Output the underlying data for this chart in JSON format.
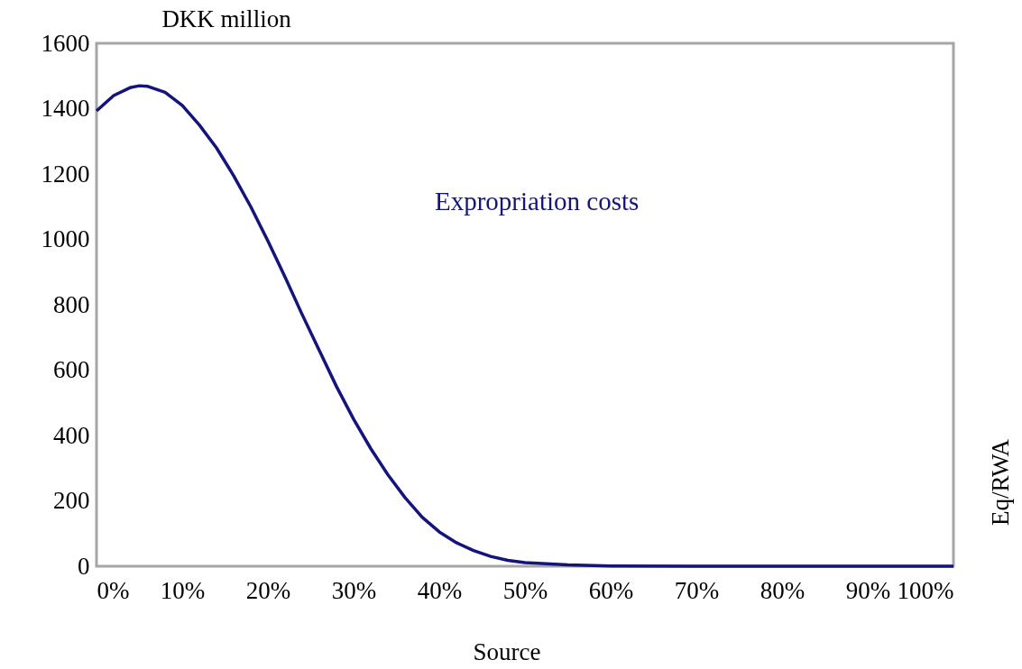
{
  "chart_data": {
    "type": "line",
    "ylabel": "DKK million",
    "y2label": "Eq/RWA",
    "annotations": [
      "Source"
    ],
    "x": [
      0,
      2,
      4,
      5,
      6,
      8,
      10,
      12,
      14,
      16,
      18,
      20,
      22,
      24,
      26,
      28,
      30,
      32,
      34,
      36,
      38,
      40,
      42,
      44,
      46,
      48,
      50,
      55,
      60,
      70,
      80,
      90,
      100
    ],
    "series": [
      {
        "name": "Expropriation costs",
        "color": "#14147d",
        "values": [
          1393,
          1440,
          1465,
          1470,
          1468,
          1450,
          1410,
          1350,
          1280,
          1195,
          1100,
          995,
          885,
          770,
          660,
          550,
          450,
          360,
          280,
          210,
          150,
          105,
          72,
          48,
          30,
          18,
          11,
          4,
          1,
          0,
          0,
          0,
          0
        ]
      }
    ],
    "xlim": [
      0,
      100
    ],
    "xticks": [
      {
        "value": 0,
        "label": "0%"
      },
      {
        "value": 10,
        "label": "10%"
      },
      {
        "value": 20,
        "label": "20%"
      },
      {
        "value": 30,
        "label": "30%"
      },
      {
        "value": 40,
        "label": "40%"
      },
      {
        "value": 50,
        "label": "50%"
      },
      {
        "value": 60,
        "label": "60%"
      },
      {
        "value": 70,
        "label": "70%"
      },
      {
        "value": 80,
        "label": "80%"
      },
      {
        "value": 90,
        "label": "90%"
      },
      {
        "value": 100,
        "label": "100%"
      }
    ],
    "ylim": [
      0,
      1600
    ],
    "yticks": [
      0,
      200,
      400,
      600,
      800,
      1000,
      1200,
      1400,
      1600
    ],
    "grid": false,
    "marker": "none",
    "line_style": "solid"
  }
}
